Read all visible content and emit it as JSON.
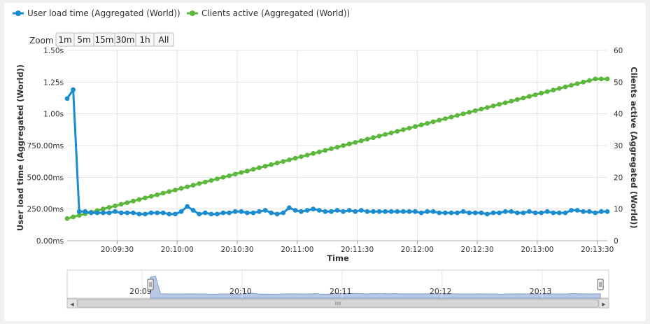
{
  "colors": {
    "load_series": "#1a8ccf",
    "clients_series": "#5cb83c",
    "grid": "#e3e3e3",
    "navigator_fill": "#b9c8e4",
    "navigator_line": "#7f9ccc"
  },
  "legend": [
    {
      "label": "User load time (Aggregated (World))",
      "color": "#1a8ccf"
    },
    {
      "label": "Clients active (Aggregated (World))",
      "color": "#5cb83c"
    }
  ],
  "zoom": {
    "label": "Zoom",
    "buttons": [
      "1m",
      "5m",
      "15m",
      "30m",
      "1h",
      "All"
    ]
  },
  "chart_data": {
    "type": "line",
    "xlabel": "Time",
    "x_range": [
      "20:09:05",
      "20:13:35"
    ],
    "x_ticks": [
      "20:09:30",
      "20:10:00",
      "20:10:30",
      "20:11:00",
      "20:11:30",
      "20:12:00",
      "20:12:30",
      "20:13:00",
      "20:13:30"
    ],
    "y_left": {
      "label": "User load time (Aggregated (World))",
      "range_seconds": [
        0,
        1.5
      ],
      "tick_labels": [
        "0.00ms",
        "250.00ms",
        "500.00ms",
        "750.00ms",
        "1.00s",
        "1.25s",
        "1.50s"
      ]
    },
    "y_right": {
      "label": "Clients active (Aggregated (World))",
      "range": [
        0,
        60
      ],
      "tick_labels": [
        "0",
        "10",
        "20",
        "30",
        "40",
        "50",
        "60"
      ]
    },
    "grid": true,
    "series": [
      {
        "name": "User load time (Aggregated (World))",
        "axis": "left",
        "unit": "seconds",
        "x_start": "20:09:05",
        "x_interval_seconds": 3,
        "values": [
          1.12,
          1.19,
          0.23,
          0.23,
          0.22,
          0.22,
          0.22,
          0.22,
          0.23,
          0.22,
          0.22,
          0.22,
          0.21,
          0.21,
          0.22,
          0.22,
          0.22,
          0.21,
          0.21,
          0.23,
          0.27,
          0.24,
          0.21,
          0.22,
          0.21,
          0.21,
          0.22,
          0.22,
          0.23,
          0.23,
          0.22,
          0.22,
          0.23,
          0.24,
          0.22,
          0.21,
          0.22,
          0.26,
          0.24,
          0.23,
          0.24,
          0.25,
          0.24,
          0.23,
          0.23,
          0.24,
          0.23,
          0.24,
          0.23,
          0.24,
          0.23,
          0.23,
          0.23,
          0.23,
          0.23,
          0.23,
          0.23,
          0.23,
          0.23,
          0.22,
          0.23,
          0.23,
          0.22,
          0.22,
          0.22,
          0.22,
          0.23,
          0.22,
          0.22,
          0.22,
          0.21,
          0.22,
          0.22,
          0.23,
          0.23,
          0.22,
          0.22,
          0.23,
          0.22,
          0.22,
          0.23,
          0.22,
          0.22,
          0.22,
          0.24,
          0.24,
          0.23,
          0.23,
          0.22,
          0.23,
          0.23
        ]
      },
      {
        "name": "Clients active (Aggregated (World))",
        "axis": "right",
        "x_start": "20:09:05",
        "x_interval_seconds": 3,
        "values": [
          7,
          7.5,
          8,
          8.5,
          9,
          9.5,
          10,
          10.5,
          11,
          11.5,
          12,
          12.5,
          13,
          13.5,
          14,
          14.5,
          15,
          15.5,
          16,
          16.5,
          17,
          17.5,
          18,
          18.5,
          19,
          19.5,
          20,
          20.5,
          21,
          21.5,
          22,
          22.5,
          23,
          23.5,
          24,
          24.5,
          25,
          25.5,
          26,
          26.5,
          27,
          27.5,
          28,
          28.5,
          29,
          29.5,
          30,
          30.5,
          31,
          31.5,
          32,
          32.5,
          33,
          33.5,
          34,
          34.5,
          35,
          35.5,
          36,
          36.5,
          37,
          37.5,
          38,
          38.5,
          39,
          39.5,
          40,
          40.5,
          41,
          41.5,
          42,
          42.5,
          43,
          43.5,
          44,
          44.5,
          45,
          45.5,
          46,
          46.5,
          47,
          47.5,
          48,
          48.5,
          49,
          49.5,
          50,
          50.5,
          51,
          51,
          51
        ]
      }
    ]
  },
  "navigator": {
    "tick_labels": [
      "20:09",
      "20:10",
      "20:11",
      "20:12",
      "20:13"
    ],
    "scroll_left_arrow": "◀",
    "scroll_right_arrow": "▶"
  }
}
